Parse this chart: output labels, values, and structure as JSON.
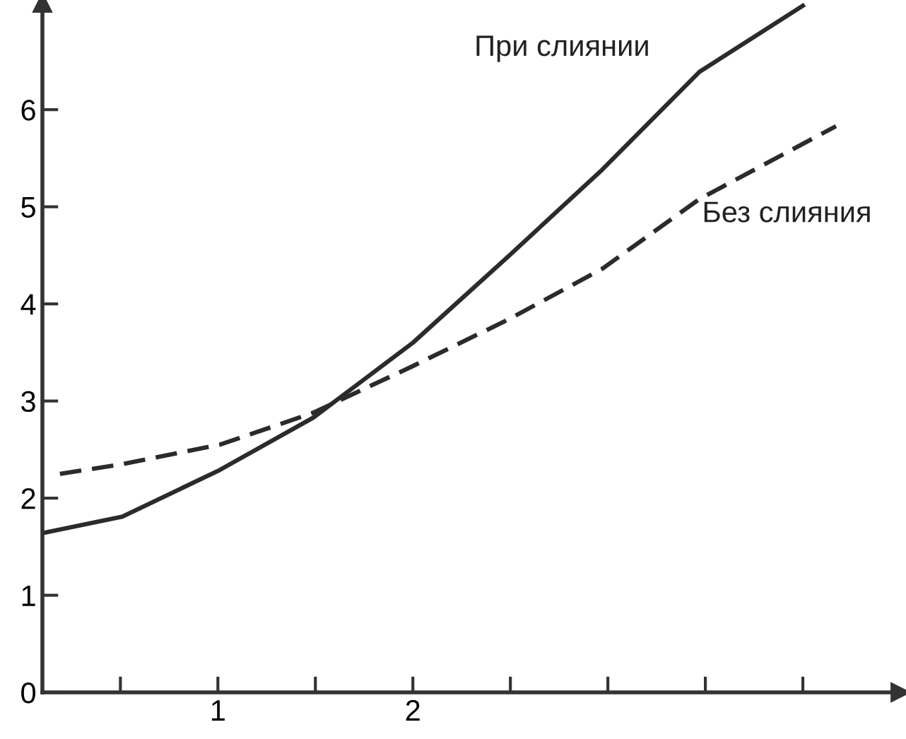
{
  "chart_data": {
    "type": "line",
    "series": [
      {
        "name": "При слиянии",
        "color": "#2b2b2b",
        "line_style": "solid",
        "x": [
          0.1,
          0.51,
          1.01,
          1.49,
          2.0,
          2.49,
          2.97,
          3.47,
          4.0
        ],
        "values": [
          1.64,
          1.81,
          2.29,
          2.83,
          3.6,
          4.49,
          5.38,
          6.39,
          7.07
        ]
      },
      {
        "name": "Без слияния",
        "color": "#2b2b2b",
        "line_style": "dashed",
        "x": [
          0.19,
          0.51,
          1.01,
          1.49,
          2.0,
          2.49,
          2.97,
          3.47,
          4.17
        ],
        "values": [
          2.25,
          2.35,
          2.55,
          2.88,
          3.36,
          3.84,
          4.36,
          5.08,
          5.83
        ]
      }
    ],
    "xlim": [
      0.1,
      4.5
    ],
    "xticks": [
      {
        "value": 0.5,
        "label": null
      },
      1,
      {
        "value": 1.5,
        "label": null
      },
      2,
      {
        "value": 2.5,
        "label": null
      },
      {
        "value": 3,
        "label": null
      },
      {
        "value": 3.5,
        "label": null
      },
      {
        "value": 4,
        "label": null
      }
    ],
    "ylim": [
      0,
      7.1
    ],
    "yticks": [
      0,
      1,
      2,
      3,
      4,
      5,
      6
    ],
    "grid": false,
    "legend": false,
    "marker": "none"
  }
}
